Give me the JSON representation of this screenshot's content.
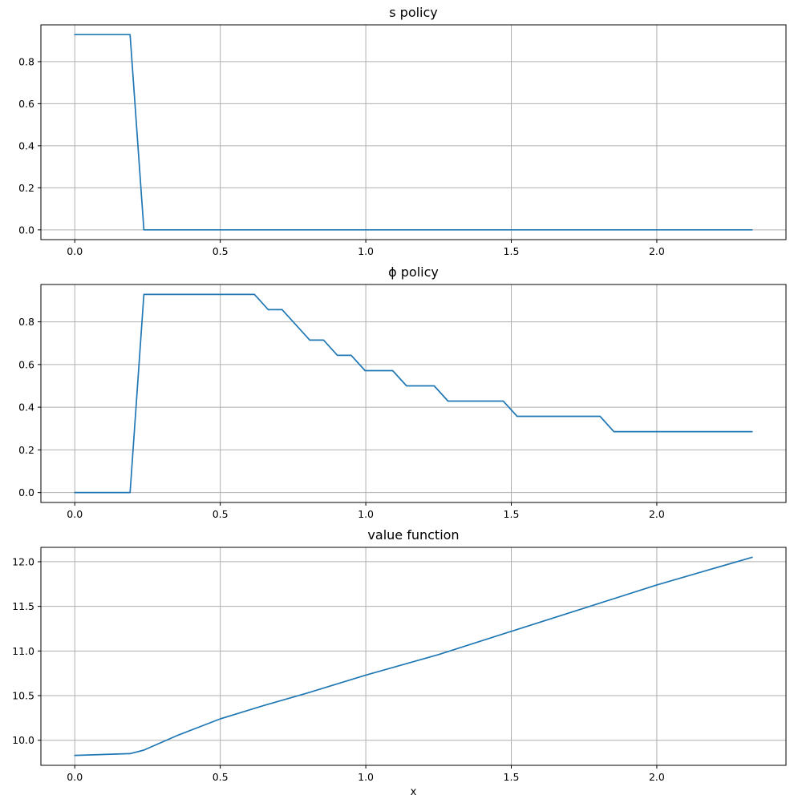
{
  "figure": {
    "background_color": "#ffffff",
    "grid_color": "#b0b0b0",
    "axes_edge_color": "#000000",
    "x_axis_label": "x"
  },
  "chart_data": [
    {
      "type": "line",
      "title": "s policy",
      "xlabel": "",
      "ylabel": "",
      "grid": true,
      "legend": "none",
      "line_color": "#1f77b4",
      "xlim": [
        -0.1164,
        2.4439
      ],
      "ylim": [
        -0.0464,
        0.975
      ],
      "x_ticks": [
        0.0,
        0.5,
        1.0,
        1.5,
        2.0
      ],
      "x_tick_labels": [
        "0.0",
        "0.5",
        "1.0",
        "1.5",
        "2.0"
      ],
      "y_ticks": [
        0.0,
        0.2,
        0.4,
        0.6,
        0.8
      ],
      "y_tick_labels": [
        "0.0",
        "0.2",
        "0.4",
        "0.6",
        "0.8"
      ],
      "series": [
        {
          "name": "s policy",
          "points": [
            [
              0.0,
              0.9286
            ],
            [
              0.19,
              0.9286
            ],
            [
              0.2375,
              0.0
            ],
            [
              2.3275,
              0.0
            ]
          ]
        }
      ]
    },
    {
      "type": "line",
      "title": "ϕ policy",
      "xlabel": "",
      "ylabel": "",
      "grid": true,
      "legend": "none",
      "line_color": "#1f77b4",
      "xlim": [
        -0.1164,
        2.4439
      ],
      "ylim": [
        -0.0464,
        0.975
      ],
      "x_ticks": [
        0.0,
        0.5,
        1.0,
        1.5,
        2.0
      ],
      "x_tick_labels": [
        "0.0",
        "0.5",
        "1.0",
        "1.5",
        "2.0"
      ],
      "y_ticks": [
        0.0,
        0.2,
        0.4,
        0.6,
        0.8
      ],
      "y_tick_labels": [
        "0.0",
        "0.2",
        "0.4",
        "0.6",
        "0.8"
      ],
      "series": [
        {
          "name": "phi policy",
          "points": [
            [
              0.0,
              0.0
            ],
            [
              0.19,
              0.0
            ],
            [
              0.2375,
              0.9286
            ],
            [
              0.6175,
              0.9286
            ],
            [
              0.665,
              0.8571
            ],
            [
              0.7125,
              0.8571
            ],
            [
              0.8075,
              0.7143
            ],
            [
              0.855,
              0.7143
            ],
            [
              0.9025,
              0.6429
            ],
            [
              0.95,
              0.6429
            ],
            [
              0.9975,
              0.5714
            ],
            [
              1.0925,
              0.5714
            ],
            [
              1.14,
              0.5
            ],
            [
              1.235,
              0.5
            ],
            [
              1.2825,
              0.4286
            ],
            [
              1.4725,
              0.4286
            ],
            [
              1.52,
              0.3571
            ],
            [
              1.805,
              0.3571
            ],
            [
              1.8525,
              0.2857
            ],
            [
              2.3275,
              0.2857
            ]
          ]
        }
      ]
    },
    {
      "type": "line",
      "title": "value function",
      "xlabel": "x",
      "ylabel": "",
      "grid": true,
      "legend": "none",
      "line_color": "#1f77b4",
      "xlim": [
        -0.1164,
        2.4439
      ],
      "ylim": [
        9.719,
        12.161
      ],
      "x_ticks": [
        0.0,
        0.5,
        1.0,
        1.5,
        2.0
      ],
      "x_tick_labels": [
        "0.0",
        "0.5",
        "1.0",
        "1.5",
        "2.0"
      ],
      "y_ticks": [
        10.0,
        10.5,
        11.0,
        11.5,
        12.0
      ],
      "y_tick_labels": [
        "10.0",
        "10.5",
        "11.0",
        "11.5",
        "12.0"
      ],
      "series": [
        {
          "name": "value function",
          "points": [
            [
              0.0,
              9.83
            ],
            [
              0.19,
              9.85
            ],
            [
              0.2375,
              9.89
            ],
            [
              0.35,
              10.05
            ],
            [
              0.5,
              10.24
            ],
            [
              0.65,
              10.39
            ],
            [
              0.8,
              10.53
            ],
            [
              1.0,
              10.73
            ],
            [
              1.25,
              10.96
            ],
            [
              1.5,
              11.22
            ],
            [
              1.75,
              11.48
            ],
            [
              2.0,
              11.74
            ],
            [
              2.3275,
              12.05
            ]
          ]
        }
      ]
    }
  ]
}
